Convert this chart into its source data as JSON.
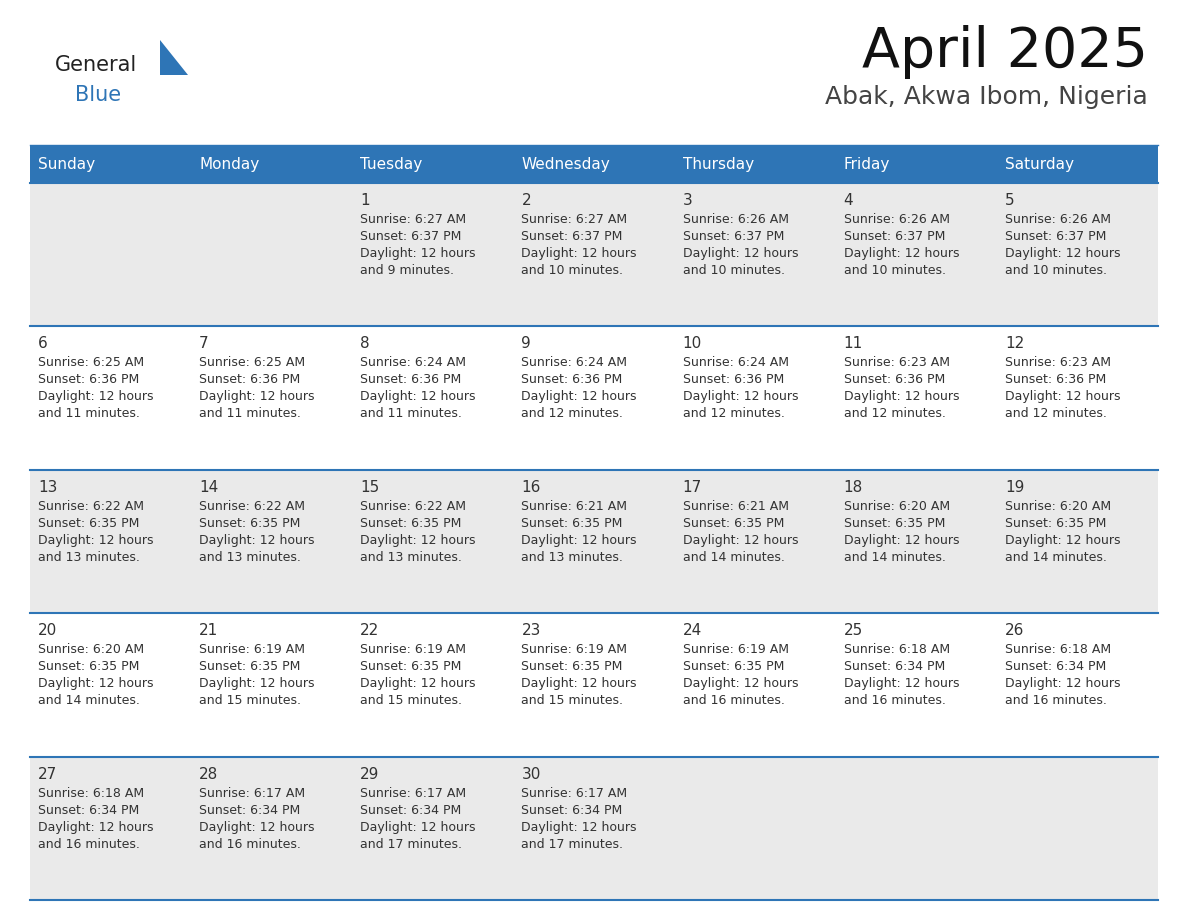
{
  "title": "April 2025",
  "subtitle": "Abak, Akwa Ibom, Nigeria",
  "header_bg": "#2E75B6",
  "header_text": "#FFFFFF",
  "row_bg_light": "#EAEAEA",
  "row_bg_white": "#FFFFFF",
  "days_of_week": [
    "Sunday",
    "Monday",
    "Tuesday",
    "Wednesday",
    "Thursday",
    "Friday",
    "Saturday"
  ],
  "cell_line_color": "#2E75B6",
  "text_color": "#333333",
  "logo_general_color": "#222222",
  "logo_blue_color": "#2E75B6",
  "logo_triangle_color": "#2E75B6",
  "calendar_data": [
    [
      {
        "day": "",
        "sunrise": "",
        "sunset": "",
        "daylight_suffix": ""
      },
      {
        "day": "",
        "sunrise": "",
        "sunset": "",
        "daylight_suffix": ""
      },
      {
        "day": "1",
        "sunrise": "6:27 AM",
        "sunset": "6:37 PM",
        "daylight_suffix": "9 minutes."
      },
      {
        "day": "2",
        "sunrise": "6:27 AM",
        "sunset": "6:37 PM",
        "daylight_suffix": "10 minutes."
      },
      {
        "day": "3",
        "sunrise": "6:26 AM",
        "sunset": "6:37 PM",
        "daylight_suffix": "10 minutes."
      },
      {
        "day": "4",
        "sunrise": "6:26 AM",
        "sunset": "6:37 PM",
        "daylight_suffix": "10 minutes."
      },
      {
        "day": "5",
        "sunrise": "6:26 AM",
        "sunset": "6:37 PM",
        "daylight_suffix": "10 minutes."
      }
    ],
    [
      {
        "day": "6",
        "sunrise": "6:25 AM",
        "sunset": "6:36 PM",
        "daylight_suffix": "11 minutes."
      },
      {
        "day": "7",
        "sunrise": "6:25 AM",
        "sunset": "6:36 PM",
        "daylight_suffix": "11 minutes."
      },
      {
        "day": "8",
        "sunrise": "6:24 AM",
        "sunset": "6:36 PM",
        "daylight_suffix": "11 minutes."
      },
      {
        "day": "9",
        "sunrise": "6:24 AM",
        "sunset": "6:36 PM",
        "daylight_suffix": "12 minutes."
      },
      {
        "day": "10",
        "sunrise": "6:24 AM",
        "sunset": "6:36 PM",
        "daylight_suffix": "12 minutes."
      },
      {
        "day": "11",
        "sunrise": "6:23 AM",
        "sunset": "6:36 PM",
        "daylight_suffix": "12 minutes."
      },
      {
        "day": "12",
        "sunrise": "6:23 AM",
        "sunset": "6:36 PM",
        "daylight_suffix": "12 minutes."
      }
    ],
    [
      {
        "day": "13",
        "sunrise": "6:22 AM",
        "sunset": "6:35 PM",
        "daylight_suffix": "13 minutes."
      },
      {
        "day": "14",
        "sunrise": "6:22 AM",
        "sunset": "6:35 PM",
        "daylight_suffix": "13 minutes."
      },
      {
        "day": "15",
        "sunrise": "6:22 AM",
        "sunset": "6:35 PM",
        "daylight_suffix": "13 minutes."
      },
      {
        "day": "16",
        "sunrise": "6:21 AM",
        "sunset": "6:35 PM",
        "daylight_suffix": "13 minutes."
      },
      {
        "day": "17",
        "sunrise": "6:21 AM",
        "sunset": "6:35 PM",
        "daylight_suffix": "14 minutes."
      },
      {
        "day": "18",
        "sunrise": "6:20 AM",
        "sunset": "6:35 PM",
        "daylight_suffix": "14 minutes."
      },
      {
        "day": "19",
        "sunrise": "6:20 AM",
        "sunset": "6:35 PM",
        "daylight_suffix": "14 minutes."
      }
    ],
    [
      {
        "day": "20",
        "sunrise": "6:20 AM",
        "sunset": "6:35 PM",
        "daylight_suffix": "14 minutes."
      },
      {
        "day": "21",
        "sunrise": "6:19 AM",
        "sunset": "6:35 PM",
        "daylight_suffix": "15 minutes."
      },
      {
        "day": "22",
        "sunrise": "6:19 AM",
        "sunset": "6:35 PM",
        "daylight_suffix": "15 minutes."
      },
      {
        "day": "23",
        "sunrise": "6:19 AM",
        "sunset": "6:35 PM",
        "daylight_suffix": "15 minutes."
      },
      {
        "day": "24",
        "sunrise": "6:19 AM",
        "sunset": "6:35 PM",
        "daylight_suffix": "16 minutes."
      },
      {
        "day": "25",
        "sunrise": "6:18 AM",
        "sunset": "6:34 PM",
        "daylight_suffix": "16 minutes."
      },
      {
        "day": "26",
        "sunrise": "6:18 AM",
        "sunset": "6:34 PM",
        "daylight_suffix": "16 minutes."
      }
    ],
    [
      {
        "day": "27",
        "sunrise": "6:18 AM",
        "sunset": "6:34 PM",
        "daylight_suffix": "16 minutes."
      },
      {
        "day": "28",
        "sunrise": "6:17 AM",
        "sunset": "6:34 PM",
        "daylight_suffix": "16 minutes."
      },
      {
        "day": "29",
        "sunrise": "6:17 AM",
        "sunset": "6:34 PM",
        "daylight_suffix": "17 minutes."
      },
      {
        "day": "30",
        "sunrise": "6:17 AM",
        "sunset": "6:34 PM",
        "daylight_suffix": "17 minutes."
      },
      {
        "day": "",
        "sunrise": "",
        "sunset": "",
        "daylight_suffix": ""
      },
      {
        "day": "",
        "sunrise": "",
        "sunset": "",
        "daylight_suffix": ""
      },
      {
        "day": "",
        "sunrise": "",
        "sunset": "",
        "daylight_suffix": ""
      }
    ]
  ]
}
